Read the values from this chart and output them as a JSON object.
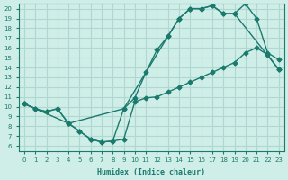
{
  "xlabel": "Humidex (Indice chaleur)",
  "ylabel": "",
  "background_color": "#d0eee8",
  "grid_color": "#b0d8d0",
  "line_color": "#1a7a6e",
  "xlim": [
    -0.5,
    23.5
  ],
  "ylim": [
    5.5,
    20.5
  ],
  "xticks": [
    0,
    1,
    2,
    3,
    4,
    5,
    6,
    7,
    8,
    9,
    10,
    11,
    12,
    13,
    14,
    15,
    16,
    17,
    18,
    19,
    20,
    21,
    22,
    23
  ],
  "yticks": [
    6,
    7,
    8,
    9,
    10,
    11,
    12,
    13,
    14,
    15,
    16,
    17,
    18,
    19,
    20
  ],
  "curve1_x": [
    0,
    1,
    2,
    3,
    4,
    5,
    6,
    7,
    8,
    9,
    10,
    11,
    12,
    13,
    14,
    15,
    16,
    17,
    18,
    19,
    20,
    21,
    22,
    23
  ],
  "curve1_y": [
    10.3,
    9.8,
    9.5,
    9.8,
    8.3,
    7.5,
    6.7,
    6.4,
    6.5,
    6.7,
    10.5,
    10.9,
    11.0,
    11.5,
    12.0,
    12.5,
    13.0,
    13.5,
    14.0,
    14.5,
    15.5,
    16.0,
    15.3,
    13.8
  ],
  "curve2_x": [
    0,
    1,
    2,
    3,
    4,
    5,
    6,
    7,
    8,
    9,
    10,
    11,
    12,
    13,
    14,
    15,
    16,
    17,
    18,
    19,
    20,
    21,
    22,
    23
  ],
  "curve2_y": [
    10.3,
    9.8,
    9.5,
    9.8,
    8.3,
    7.5,
    6.7,
    6.4,
    6.5,
    9.8,
    10.9,
    13.5,
    15.8,
    17.2,
    19.0,
    20.0,
    20.0,
    20.3,
    19.5,
    19.5,
    20.5,
    19.0,
    15.5,
    14.8
  ],
  "curve3_x": [
    0,
    4,
    9,
    13,
    14,
    15,
    16,
    17,
    18,
    19,
    23
  ],
  "curve3_y": [
    10.3,
    8.3,
    9.8,
    17.2,
    19.0,
    20.0,
    20.0,
    20.3,
    19.5,
    19.5,
    13.8
  ]
}
